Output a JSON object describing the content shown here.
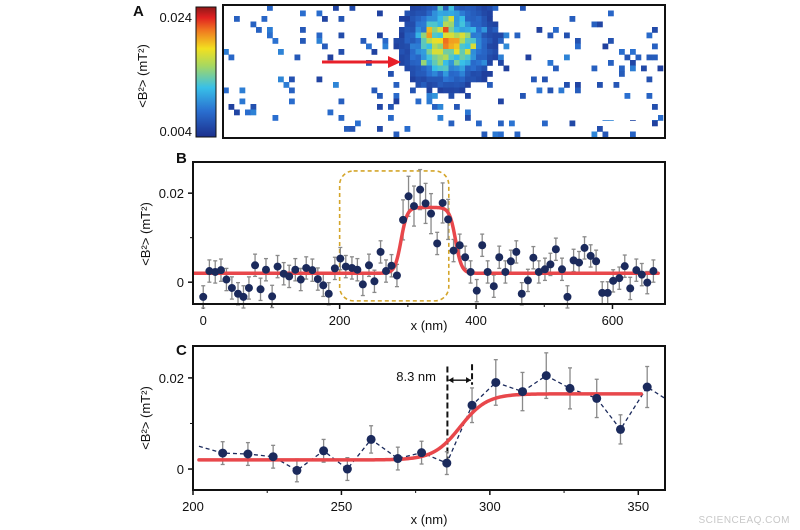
{
  "watermark": "SCIENCEAQ.COM",
  "chart_data": [
    {
      "panel": "A",
      "type": "heatmap",
      "colorbar": {
        "min": 0.004,
        "max": 0.024,
        "tick_labels": [
          "0.024",
          "0.004"
        ],
        "label": "<B²> (mT²)",
        "colormap": "jet"
      },
      "colors": {
        "background": "#1c3a8c",
        "arrow": "#e8202a",
        "scalebar": "#ffffff"
      }
    },
    {
      "panel": "B",
      "type": "scatter",
      "xlabel": "x (nm)",
      "ylabel": "<B²> (mT²)",
      "xlim": [
        -15,
        677
      ],
      "ylim": [
        -0.0049,
        0.027
      ],
      "x_ticks": [
        "0",
        "200",
        "400",
        "600"
      ],
      "y_ticks": [
        "0",
        "0.02"
      ],
      "x": [
        0,
        9,
        17.6,
        26,
        34,
        42,
        51,
        59,
        67,
        76,
        84,
        92,
        101,
        109,
        118,
        126,
        135,
        143,
        151,
        160,
        168,
        176,
        184,
        193,
        201,
        209,
        218,
        226,
        234,
        243,
        251,
        260,
        268,
        276,
        284,
        293,
        301,
        309,
        318,
        326,
        334,
        343,
        351,
        359,
        367,
        376,
        384,
        392,
        401,
        409,
        417,
        426,
        434,
        443,
        451,
        459,
        467,
        476,
        484,
        492,
        501,
        509,
        517,
        526,
        534,
        543,
        551,
        559,
        568,
        576,
        585,
        593,
        601,
        610,
        618,
        626,
        635,
        643,
        651,
        660
      ],
      "y": [
        -0.0033,
        0.0025,
        0.0023,
        0.0027,
        0.0006,
        -0.0013,
        -0.0026,
        -0.0033,
        -0.0013,
        0.0038,
        -0.0016,
        0.0028,
        -0.0032,
        0.0035,
        0.0019,
        0.0013,
        0.0028,
        0.0006,
        0.0032,
        0.0027,
        0.0007,
        -0.0007,
        -0.0026,
        0.0031,
        0.0053,
        0.0035,
        0.0032,
        0.0028,
        -0.0005,
        0.0038,
        0.0002,
        0.0068,
        0.0025,
        0.0037,
        0.0015,
        0.014,
        0.0193,
        0.0171,
        0.0208,
        0.0177,
        0.0154,
        0.0087,
        0.0178,
        0.0141,
        0.0071,
        0.0083,
        0.0056,
        0.0023,
        -0.0019,
        0.0083,
        0.0023,
        -0.0009,
        0.0056,
        0.0023,
        0.0047,
        0.0068,
        -0.0026,
        0.0004,
        0.0055,
        0.0023,
        0.0029,
        0.004,
        0.0074,
        0.0029,
        -0.0033,
        0.0049,
        0.0044,
        0.0077,
        0.0059,
        0.0047,
        -0.0024,
        -0.0024,
        0.0003,
        0.0009,
        0.0036,
        -0.0014,
        0.0027,
        0.0017,
        -0.0001,
        0.0025
      ],
      "error": 0.0025,
      "fit": {
        "baseline": 0.002,
        "peak": 0.0168,
        "rise_center": 290,
        "fall_center": 370,
        "width": 4.5
      },
      "highlight_box": {
        "x_range": [
          200,
          360
        ],
        "y_range": [
          -0.0042,
          0.025
        ]
      },
      "colors": {
        "points": "#1b2a5c",
        "error_bars": "#8a8a8a",
        "fit": "#e8474b",
        "highlight_box": "#d4a52a"
      }
    },
    {
      "panel": "C",
      "type": "scatter",
      "xlabel": "x (nm)",
      "ylabel": "<B²> (mT²)",
      "xlim": [
        200,
        359
      ],
      "ylim": [
        -0.0046,
        0.027
      ],
      "x_ticks": [
        "200",
        "250",
        "300",
        "350"
      ],
      "y_ticks": [
        "0",
        "0.02"
      ],
      "x": [
        210,
        218.5,
        227,
        235,
        244,
        252,
        260,
        269,
        277,
        285.5,
        294,
        302,
        311,
        319,
        327,
        336,
        344,
        353
      ],
      "y": [
        0.0035,
        0.0033,
        0.0027,
        -0.0003,
        0.004,
        0,
        0.0065,
        0.0023,
        0.0036,
        0.0013,
        0.014,
        0.019,
        0.017,
        0.0205,
        0.0177,
        0.0155,
        0.0087,
        0.018
      ],
      "error": [
        0.0025,
        0.0025,
        0.0025,
        0.0025,
        0.0025,
        0.0025,
        0.003,
        0.0025,
        0.0025,
        0.0025,
        0.0038,
        0.005,
        0.0042,
        0.005,
        0.0045,
        0.0042,
        0.0032,
        0.0045
      ],
      "fit": {
        "baseline": 0.002,
        "plateau": 0.0165,
        "center": 290,
        "width": 4.5,
        "x_end": 351
      },
      "annotation": {
        "text": "8.3 nm",
        "x_from": 285.7,
        "x_to": 294
      },
      "colors": {
        "points": "#1b2a5c",
        "error_bars": "#8a8a8a",
        "fit": "#e8474b",
        "dashed": "#1b2a5c"
      }
    }
  ]
}
